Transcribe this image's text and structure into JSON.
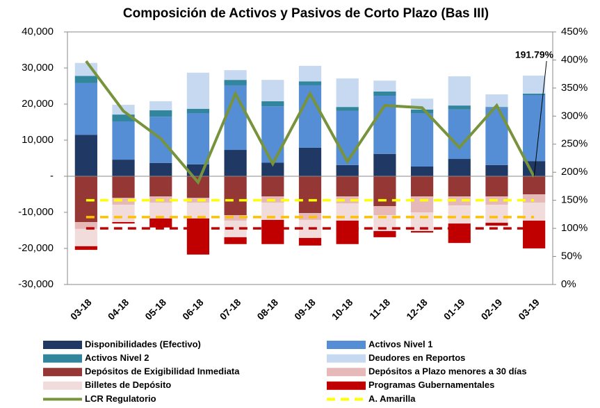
{
  "chart_data": {
    "type": "bar",
    "title": "Composición de Activos y Pasivos de Corto Plazo (Bas III)",
    "categories": [
      "03-18",
      "04-18",
      "05-18",
      "06-18",
      "07-18",
      "08-18",
      "09-18",
      "10-18",
      "11-18",
      "12-18",
      "01-19",
      "02-19",
      "03-19"
    ],
    "ylim": [
      -30000,
      40000
    ],
    "yticks": [
      {
        "value": -30000,
        "label": "-30,000"
      },
      {
        "value": -20000,
        "label": "-20,000"
      },
      {
        "value": -10000,
        "label": "-10,000"
      },
      {
        "value": 0,
        "label": "-"
      },
      {
        "value": 10000,
        "label": "10,000"
      },
      {
        "value": 20000,
        "label": "20,000"
      },
      {
        "value": 30000,
        "label": "30,000"
      },
      {
        "value": 40000,
        "label": "40,000"
      }
    ],
    "y2lim": [
      0,
      450
    ],
    "y2ticks": [
      {
        "value": 0,
        "label": "0%"
      },
      {
        "value": 50,
        "label": "50%"
      },
      {
        "value": 100,
        "label": "100%"
      },
      {
        "value": 150,
        "label": "150%"
      },
      {
        "value": 200,
        "label": "200%"
      },
      {
        "value": 250,
        "label": "250%"
      },
      {
        "value": 300,
        "label": "300%"
      },
      {
        "value": 350,
        "label": "350%"
      },
      {
        "value": 400,
        "label": "400%"
      },
      {
        "value": 450,
        "label": "450%"
      }
    ],
    "series": [
      {
        "name": "Disponibilidades (Efectivo)",
        "type": "bar",
        "color": "#1f3864",
        "values": [
          11500,
          4600,
          3700,
          3300,
          7300,
          3800,
          7900,
          3100,
          6200,
          2700,
          4800,
          3100,
          4200
        ]
      },
      {
        "name": "Activos Nivel 1",
        "type": "bar",
        "color": "#558ed5",
        "values": [
          14300,
          10600,
          12800,
          14200,
          17900,
          15600,
          17300,
          15000,
          16100,
          14800,
          13700,
          15900,
          18300
        ]
      },
      {
        "name": "Activos Nivel 2",
        "type": "bar",
        "color": "#31859c",
        "values": [
          2000,
          1900,
          1800,
          1200,
          1500,
          1400,
          1100,
          1100,
          1200,
          1000,
          1100,
          200,
          400
        ]
      },
      {
        "name": "Deudores en Reportos",
        "type": "bar",
        "color": "#c6d9f1",
        "values": [
          3600,
          2700,
          2500,
          10000,
          2700,
          5900,
          4300,
          7900,
          3000,
          3000,
          8100,
          3500,
          5000
        ]
      },
      {
        "name": "Depósitos de Exigibilidad Inmediata",
        "type": "bar",
        "color": "#953735",
        "values": [
          -12700,
          -6000,
          -5600,
          -6000,
          -10800,
          -5600,
          -10200,
          -5600,
          -8300,
          -5600,
          -5600,
          -5600,
          -5000
        ]
      },
      {
        "name": "Depósitos a Plazo menores a 30 días",
        "type": "bar",
        "color": "#e6b9b8",
        "values": [
          -1900,
          -1900,
          -1700,
          -1300,
          -1500,
          -1700,
          -1900,
          -1900,
          -2500,
          -4400,
          -2500,
          -2300,
          -2300
        ]
      },
      {
        "name": "Billetes de Depósito",
        "type": "bar",
        "color": "#f2dcdb",
        "values": [
          -4800,
          -4800,
          -4400,
          -4400,
          -4600,
          -4800,
          -5000,
          -4800,
          -4400,
          -5200,
          -5000,
          -5000,
          -5000
        ]
      },
      {
        "name": "Programas Gubernamentales",
        "type": "bar",
        "color": "#c00000",
        "values": [
          -1000,
          -400,
          -2500,
          -10000,
          -1900,
          -6700,
          -2100,
          -6500,
          -1700,
          -400,
          -5400,
          -800,
          -7700
        ]
      },
      {
        "name": "LCR Regulatorio",
        "type": "line",
        "axis": "y2",
        "color": "#77933c",
        "values": [
          398,
          309,
          260,
          182,
          340,
          215,
          340,
          219,
          319,
          315,
          244,
          319,
          191.79
        ],
        "value_labels": [
          null,
          null,
          null,
          null,
          null,
          null,
          null,
          null,
          null,
          null,
          null,
          null,
          "191.79%"
        ]
      },
      {
        "name": "A. Amarilla",
        "type": "line",
        "axis": "y2",
        "dash": true,
        "color": "#ffff00",
        "values": [
          150,
          150,
          150,
          150,
          150,
          150,
          150,
          150,
          150,
          150,
          150,
          150,
          150
        ]
      },
      {
        "type": "line",
        "axis": "y2",
        "dash": true,
        "color": "#ffc000",
        "values": [
          120,
          120,
          120,
          120,
          120,
          120,
          120,
          120,
          120,
          120,
          120,
          120,
          120
        ]
      },
      {
        "type": "line",
        "axis": "y2",
        "dash": true,
        "color": "#c00000",
        "values": [
          100,
          100,
          100,
          100,
          100,
          100,
          100,
          100,
          100,
          100,
          100,
          100,
          100
        ]
      }
    ]
  }
}
